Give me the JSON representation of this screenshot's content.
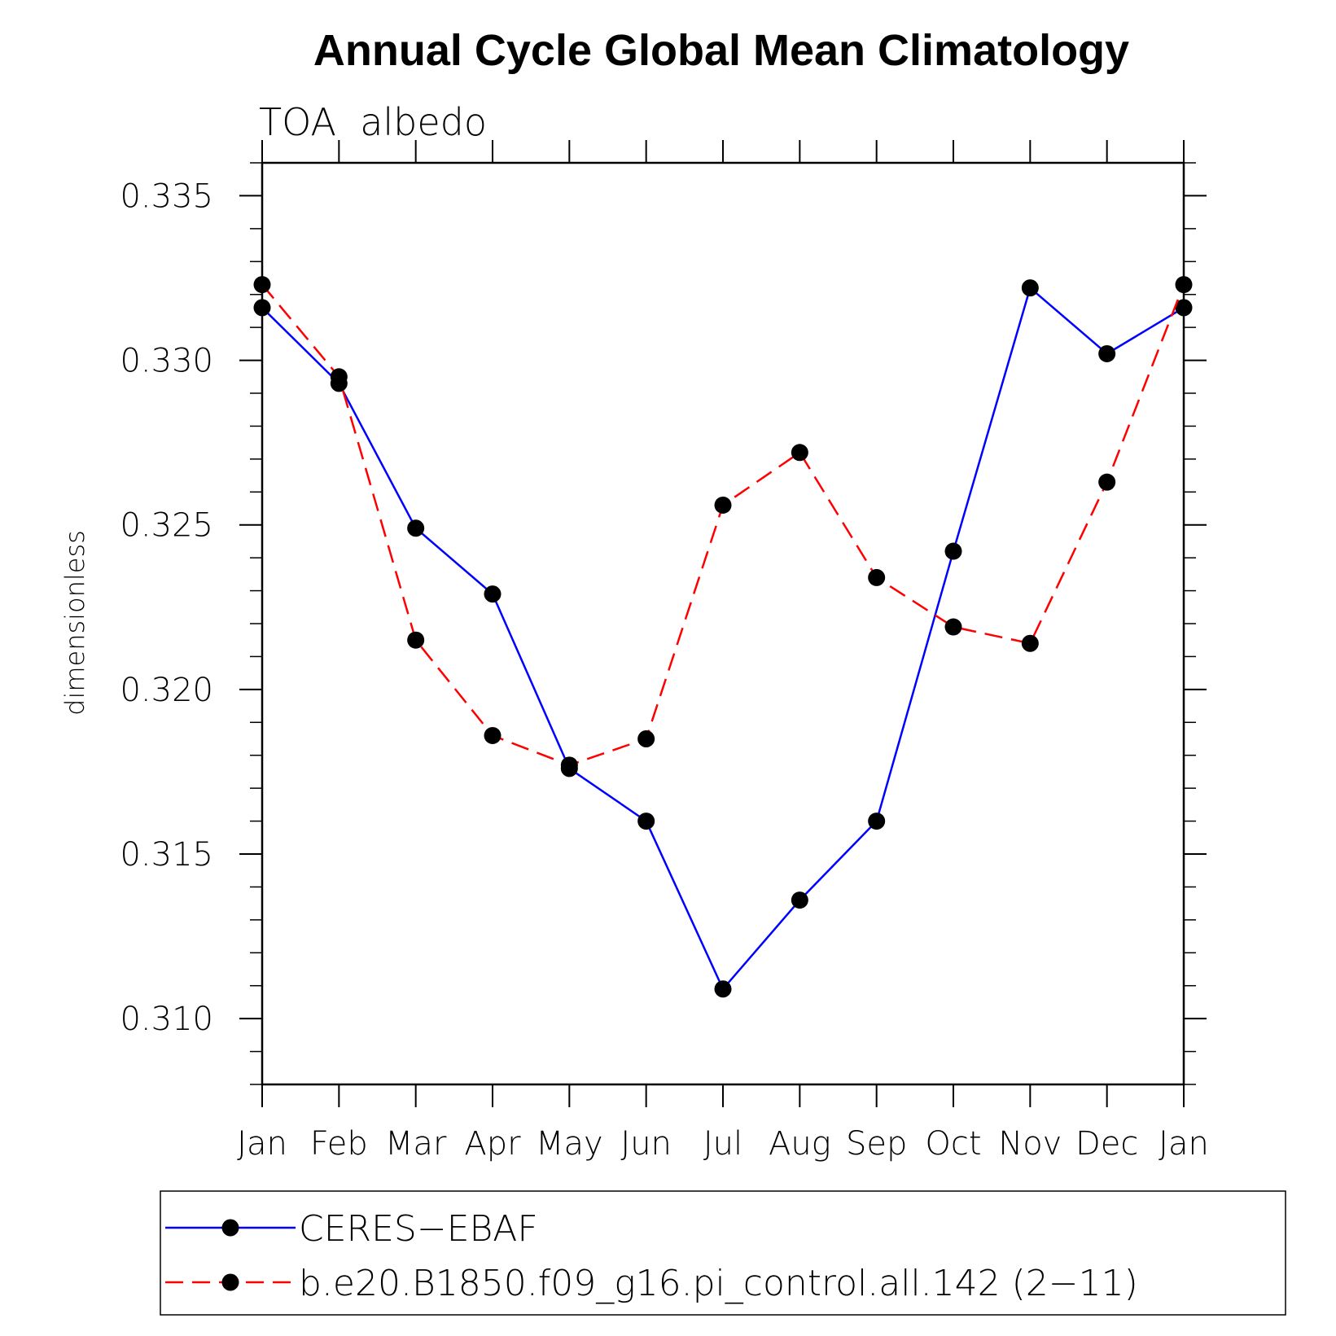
{
  "chart_data": {
    "type": "line",
    "title": "Annual Cycle Global Mean Climatology",
    "subtitle": "TOA  albedo",
    "xlabel": "",
    "ylabel": "dimensionless",
    "categories": [
      "Jan",
      "Feb",
      "Mar",
      "Apr",
      "May",
      "Jun",
      "Jul",
      "Aug",
      "Sep",
      "Oct",
      "Nov",
      "Dec",
      "Jan"
    ],
    "ylim": [
      0.308,
      0.336
    ],
    "yticks": [
      0.31,
      0.315,
      0.32,
      0.325,
      0.33,
      0.335
    ],
    "ytick_labels": [
      "0.310",
      "0.315",
      "0.320",
      "0.325",
      "0.330",
      "0.335"
    ],
    "grid": false,
    "legend_position": "bottom",
    "series": [
      {
        "name": "CERES−EBAF",
        "color": "#0000ff",
        "dash": "solid",
        "marker": "circle",
        "values": [
          0.3316,
          0.3293,
          0.3249,
          0.3229,
          0.3176,
          0.316,
          0.3109,
          0.3136,
          0.316,
          0.3242,
          0.3322,
          0.3302,
          0.3316
        ]
      },
      {
        "name": "b.e20.B1850.f09_g16.pi_control.all.142 (2−11)",
        "color": "#ff0000",
        "dash": "dashed",
        "marker": "circle",
        "values": [
          0.3323,
          0.3295,
          0.3215,
          0.3186,
          0.3177,
          0.3185,
          0.3256,
          0.3272,
          0.3234,
          0.3219,
          0.3214,
          0.3263,
          0.3323
        ]
      }
    ]
  }
}
